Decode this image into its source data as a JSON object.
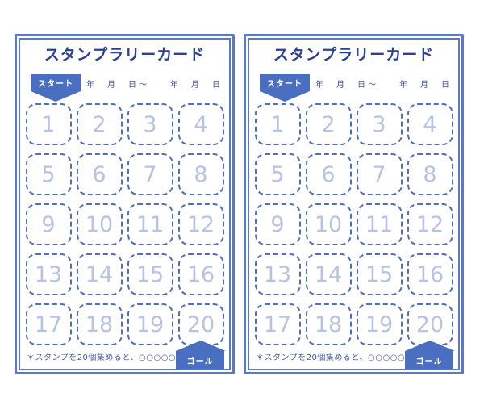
{
  "theme": {
    "page-bg": "#ffffff",
    "accent": "#4a6fc1",
    "title-color": "#2c4193",
    "border-color": "#5b79c6",
    "dash-color": "#4f6fbd",
    "number-color": "#b7c3e4",
    "text-color": "#44589f"
  },
  "card": {
    "title": "スタンプラリーカード",
    "start_badge": "スタート",
    "goal_badge": "ゴール",
    "date_line": "年　月　日〜　　年　月　日",
    "note": "＊スタンプを20個集めると、○○○○○",
    "stamps": [
      "1",
      "2",
      "3",
      "4",
      "5",
      "6",
      "7",
      "8",
      "9",
      "10",
      "11",
      "12",
      "13",
      "14",
      "15",
      "16",
      "17",
      "18",
      "19",
      "20"
    ]
  }
}
